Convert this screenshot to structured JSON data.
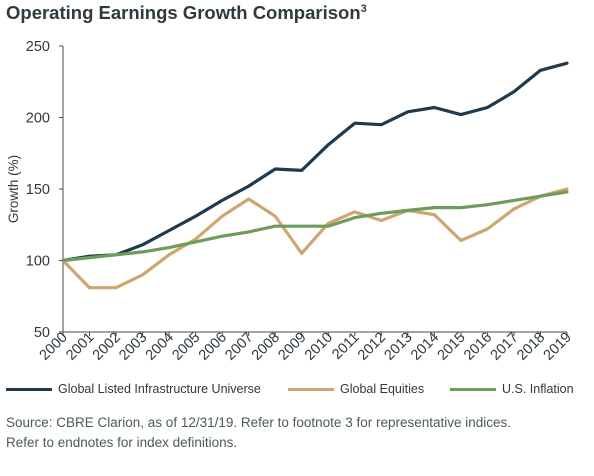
{
  "title": "Operating Earnings Growth Comparison",
  "title_sup": "3",
  "colors": {
    "infrastructure": "#1f3a4d",
    "equities": "#cfa670",
    "inflation": "#6e9b5e",
    "axis": "#4a4a4a",
    "text": "#2e3940"
  },
  "chart_data": {
    "type": "line",
    "title": "Operating Earnings Growth Comparison",
    "xlabel": "",
    "ylabel": "Growth (%)",
    "x": [
      "2000",
      "2001",
      "2002",
      "2003",
      "2004",
      "2005",
      "2006",
      "2007",
      "2008",
      "2009",
      "2010",
      "2011",
      "2012",
      "2013",
      "2014",
      "2015",
      "2016",
      "2017",
      "2018",
      "2019"
    ],
    "ylim": [
      50,
      250
    ],
    "yticks": [
      50,
      100,
      150,
      200,
      250
    ],
    "grid": false,
    "legend_position": "bottom",
    "series": [
      {
        "name": "Global Listed Infrastructure Universe",
        "color": "#1f3a4d",
        "values": [
          100,
          103,
          104,
          111,
          121,
          131,
          142,
          152,
          164,
          163,
          181,
          196,
          195,
          204,
          207,
          202,
          207,
          218,
          233,
          238
        ]
      },
      {
        "name": "Global Equities",
        "color": "#cfa670",
        "values": [
          100,
          81,
          81,
          90,
          104,
          115,
          131,
          143,
          131,
          105,
          126,
          134,
          128,
          135,
          132,
          114,
          122,
          136,
          145,
          150
        ]
      },
      {
        "name": "U.S. Inflation",
        "color": "#6e9b5e",
        "values": [
          100,
          102,
          104,
          106,
          109,
          113,
          117,
          120,
          124,
          124,
          124,
          130,
          133,
          135,
          137,
          137,
          139,
          142,
          145,
          148
        ]
      }
    ]
  },
  "legend": [
    {
      "label": "Global Listed Infrastructure Universe"
    },
    {
      "label": "Global Equities"
    },
    {
      "label": "U.S. Inflation"
    }
  ],
  "source": {
    "line1": "Source: CBRE Clarion, as of 12/31/19. Refer to footnote 3 for representative indices.",
    "line2": "Refer to endnotes for index definitions."
  }
}
